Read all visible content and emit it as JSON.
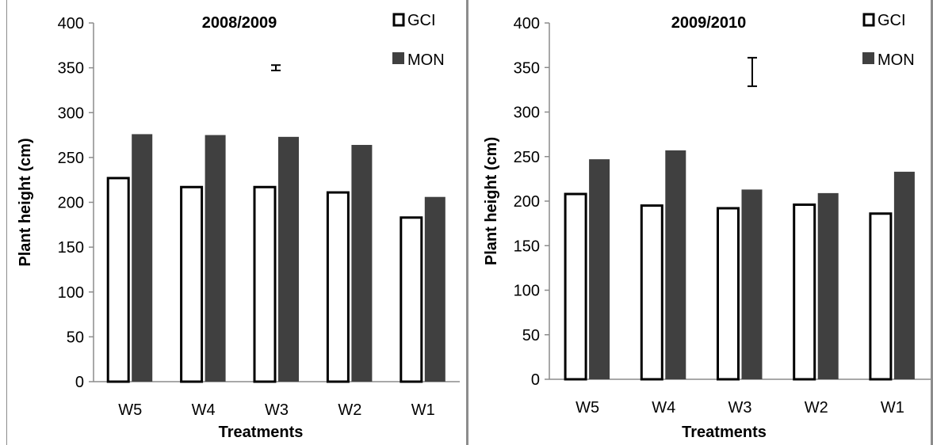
{
  "chart_data": [
    {
      "type": "bar",
      "title": "2008/2009",
      "xlabel": "Treatments",
      "ylabel": "Plant height (cm)",
      "ylim": [
        0,
        400
      ],
      "yticks": [
        "0",
        "50",
        "100",
        "150",
        "200",
        "250",
        "300",
        "350",
        "400"
      ],
      "categories": [
        "W5",
        "W4",
        "W3",
        "W2",
        "W1"
      ],
      "series": [
        {
          "name": "GCI",
          "values": [
            227,
            217,
            217,
            211,
            183
          ],
          "color": "#ffffff",
          "stroke": "#000000"
        },
        {
          "name": "MON",
          "values": [
            276,
            275,
            273,
            264,
            206
          ],
          "color": "#404040"
        }
      ],
      "error_bar": {
        "center": 350,
        "half": 3
      },
      "legend_position": "top-right",
      "grid": false
    },
    {
      "type": "bar",
      "title": "2009/2010",
      "xlabel": "Treatments",
      "ylabel": "Plant height (cm)",
      "ylim": [
        0,
        400
      ],
      "yticks": [
        "0",
        "50",
        "100",
        "150",
        "200",
        "250",
        "300",
        "350",
        "400"
      ],
      "categories": [
        "W5",
        "W4",
        "W3",
        "W2",
        "W1"
      ],
      "series": [
        {
          "name": "GCI",
          "values": [
            208,
            195,
            192,
            196,
            186
          ],
          "color": "#ffffff",
          "stroke": "#000000"
        },
        {
          "name": "MON",
          "values": [
            247,
            257,
            213,
            209,
            233
          ],
          "color": "#404040"
        }
      ],
      "error_bar": {
        "center": 345,
        "half": 16
      },
      "legend_position": "top-right",
      "grid": false
    }
  ]
}
